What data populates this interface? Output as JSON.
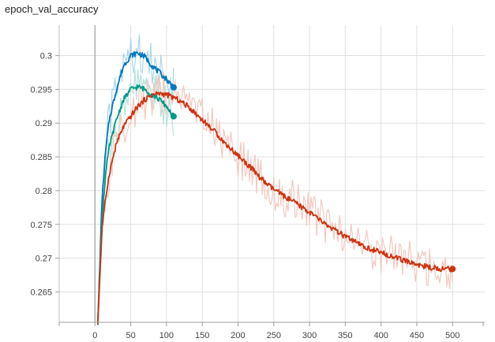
{
  "chart_data": {
    "type": "line",
    "title": "epoch_val_accuracy",
    "xlabel": "",
    "ylabel": "",
    "xlim": [
      -50,
      545
    ],
    "ylim": [
      0.2605,
      0.3045
    ],
    "x_ticks": [
      0,
      50,
      100,
      150,
      200,
      250,
      300,
      350,
      400,
      450,
      500
    ],
    "y_ticks": [
      0.265,
      0.27,
      0.275,
      0.28,
      0.285,
      0.29,
      0.295,
      0.3
    ],
    "grid": true,
    "legend": "none",
    "series": [
      {
        "color": "#0077bb",
        "raw_color": "#a9d7ea",
        "x": [
          4,
          10,
          15,
          20,
          30,
          40,
          50,
          60,
          70,
          80,
          90,
          100,
          110
        ],
        "y": [
          0.2605,
          0.279,
          0.286,
          0.2905,
          0.295,
          0.2985,
          0.3,
          0.3004,
          0.2998,
          0.2985,
          0.2975,
          0.2965,
          0.2953
        ]
      },
      {
        "color": "#009988",
        "raw_color": "#b5e3dc",
        "x": [
          4,
          10,
          15,
          20,
          30,
          40,
          50,
          60,
          70,
          80,
          90,
          100,
          110
        ],
        "y": [
          0.2605,
          0.2765,
          0.2825,
          0.2865,
          0.2905,
          0.2935,
          0.295,
          0.2954,
          0.295,
          0.2942,
          0.2935,
          0.2925,
          0.291
        ]
      },
      {
        "color": "#cc3311",
        "raw_color": "#f2c9bf",
        "x": [
          4,
          10,
          15,
          20,
          30,
          40,
          50,
          60,
          70,
          80,
          90,
          100,
          110,
          120,
          130,
          140,
          150,
          160,
          170,
          180,
          190,
          200,
          210,
          220,
          230,
          240,
          250,
          260,
          270,
          280,
          290,
          300,
          310,
          320,
          330,
          340,
          350,
          360,
          370,
          380,
          390,
          400,
          410,
          420,
          430,
          440,
          450,
          460,
          470,
          480,
          490,
          500
        ],
        "y": [
          0.2605,
          0.2745,
          0.279,
          0.2825,
          0.287,
          0.2895,
          0.291,
          0.2925,
          0.2935,
          0.2942,
          0.2944,
          0.2942,
          0.2938,
          0.2932,
          0.2925,
          0.2915,
          0.2905,
          0.2895,
          0.2885,
          0.2872,
          0.2862,
          0.2852,
          0.2842,
          0.2832,
          0.282,
          0.281,
          0.2802,
          0.2795,
          0.2788,
          0.2782,
          0.2775,
          0.2768,
          0.276,
          0.2752,
          0.2745,
          0.2738,
          0.2732,
          0.2726,
          0.272,
          0.2715,
          0.2712,
          0.2708,
          0.2705,
          0.2701,
          0.2697,
          0.2694,
          0.2691,
          0.2688,
          0.2686,
          0.2685,
          0.2684,
          0.2684
        ]
      }
    ]
  }
}
